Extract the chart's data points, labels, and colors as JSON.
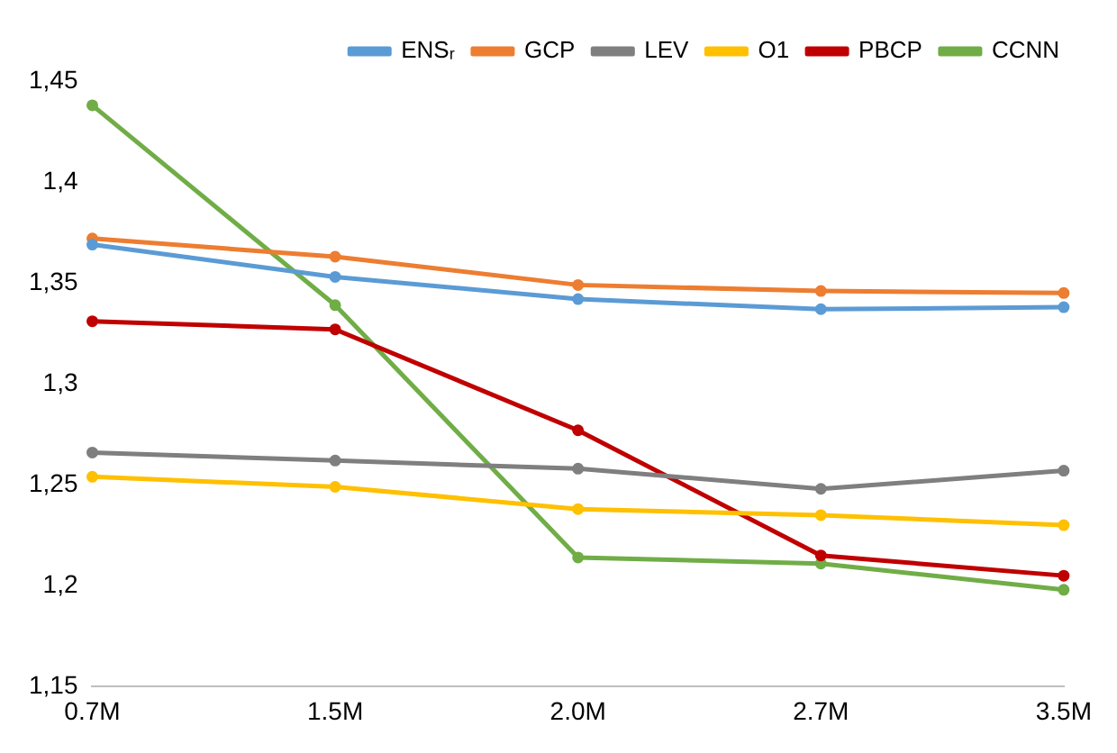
{
  "chart_data": {
    "type": "line",
    "categories": [
      "0.7M",
      "1.5M",
      "2.0M",
      "2.7M",
      "3.5M"
    ],
    "series": [
      {
        "name": "ENSᵣ",
        "color": "#5b9bd5",
        "values": [
          1.369,
          1.353,
          1.342,
          1.337,
          1.338
        ]
      },
      {
        "name": "GCP",
        "color": "#ed7d31",
        "values": [
          1.372,
          1.363,
          1.349,
          1.346,
          1.345
        ]
      },
      {
        "name": "LEV",
        "color": "#7f7f7f",
        "values": [
          1.266,
          1.262,
          1.258,
          1.248,
          1.257
        ]
      },
      {
        "name": "O1",
        "color": "#ffc000",
        "values": [
          1.254,
          1.249,
          1.238,
          1.235,
          1.23
        ]
      },
      {
        "name": "PBCP",
        "color": "#c00000",
        "values": [
          1.331,
          1.327,
          1.277,
          1.215,
          1.205
        ]
      },
      {
        "name": "CCNN",
        "color": "#70ad47",
        "values": [
          1.438,
          1.339,
          1.214,
          1.211,
          1.198
        ]
      }
    ],
    "ylim": [
      1.15,
      1.45
    ],
    "yticks": [
      {
        "value": 1.15,
        "label": "1,15"
      },
      {
        "value": 1.2,
        "label": "1,2"
      },
      {
        "value": 1.25,
        "label": "1,25"
      },
      {
        "value": 1.3,
        "label": "1,3"
      },
      {
        "value": 1.35,
        "label": "1,35"
      },
      {
        "value": 1.4,
        "label": "1,4"
      },
      {
        "value": 1.45,
        "label": "1,45"
      }
    ],
    "grid": false,
    "legend": "top right",
    "marker": "circle",
    "line_style": "solid"
  }
}
